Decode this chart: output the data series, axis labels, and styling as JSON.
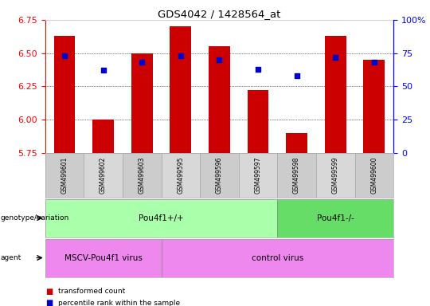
{
  "title": "GDS4042 / 1428564_at",
  "samples": [
    "GSM499601",
    "GSM499602",
    "GSM499603",
    "GSM499595",
    "GSM499596",
    "GSM499597",
    "GSM499598",
    "GSM499599",
    "GSM499600"
  ],
  "transformed_counts": [
    6.63,
    6.0,
    6.5,
    6.7,
    6.55,
    6.22,
    5.9,
    6.63,
    6.45
  ],
  "percentile_ranks": [
    73,
    62,
    68,
    73,
    70,
    63,
    58,
    72,
    68
  ],
  "ylim_left": [
    5.75,
    6.75
  ],
  "ylim_right": [
    0,
    100
  ],
  "bar_color": "#cc0000",
  "dot_color": "#0000cc",
  "tick_label_area_color": "#d3d3d3",
  "genotype_label": "genotype/variation",
  "agent_label": "agent",
  "genotype_groups": [
    {
      "label": "Pou4f1+/+",
      "start": 0,
      "end": 6,
      "color": "#aaffaa"
    },
    {
      "label": "Pou4f1-/-",
      "start": 6,
      "end": 9,
      "color": "#66dd66"
    }
  ],
  "agent_groups": [
    {
      "label": "MSCV-Pou4f1 virus",
      "start": 0,
      "end": 3,
      "color": "#ee88ee"
    },
    {
      "label": "control virus",
      "start": 3,
      "end": 9,
      "color": "#ee88ee"
    }
  ],
  "legend_items": [
    {
      "label": "transformed count",
      "color": "#cc0000"
    },
    {
      "label": "percentile rank within the sample",
      "color": "#0000cc"
    }
  ],
  "left_yticks": [
    5.75,
    6.0,
    6.25,
    6.5,
    6.75
  ],
  "right_yticks": [
    0,
    25,
    50,
    75,
    100
  ],
  "right_ytick_labels": [
    "0",
    "25",
    "50",
    "75",
    "100%"
  ]
}
